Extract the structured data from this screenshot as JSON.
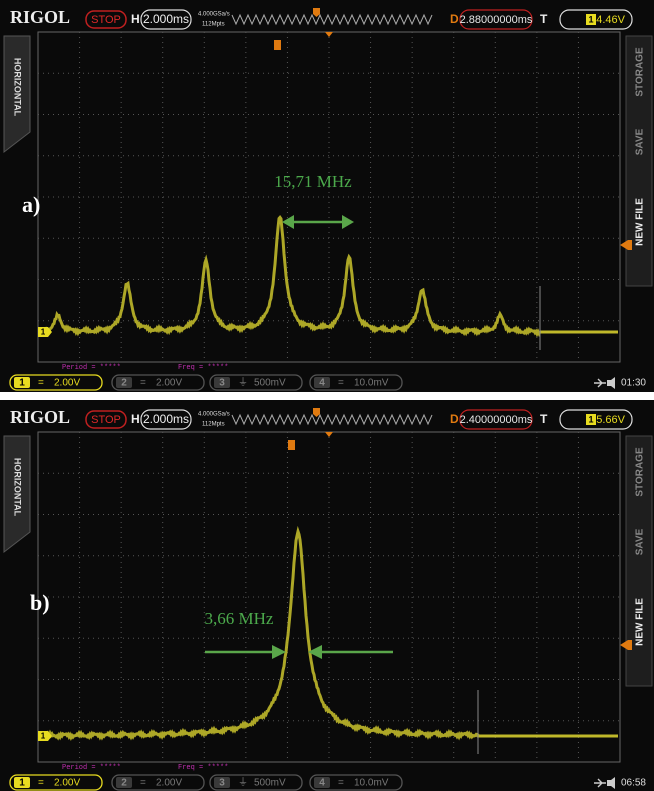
{
  "panels": [
    {
      "label": "a)",
      "annotation": "15,71 MHz",
      "top_bar": {
        "logo": "RIGOL",
        "status": "STOP",
        "timebase_label": "H",
        "timebase": "2.000ms",
        "sample_rate": "4.000GSa/s",
        "memory_depth": "112Mpts",
        "delay_label": "D",
        "delay": "2.88000000ms",
        "trigger_label": "T",
        "trigger_source": "1",
        "trigger_level": "4.46V"
      },
      "side_left": "HORIZONTAL",
      "side_right": [
        "STORAGE",
        "SAVE",
        "NEW FILE"
      ],
      "measurements": [
        "Period = *****",
        "Freq = *****"
      ],
      "channels": [
        {
          "number": "1",
          "coupling": "=",
          "scale": "2.00V"
        },
        {
          "number": "2",
          "coupling": "=",
          "scale": "2.00V"
        },
        {
          "number": "3",
          "coupling": "⏚",
          "scale": "500mV"
        },
        {
          "number": "4",
          "coupling": "=",
          "scale": "10.0mV"
        }
      ],
      "clock": "01:30"
    },
    {
      "label": "b)",
      "annotation": "3,66 MHz",
      "top_bar": {
        "logo": "RIGOL",
        "status": "STOP",
        "timebase_label": "H",
        "timebase": "2.000ms",
        "sample_rate": "4.000GSa/s",
        "memory_depth": "112Mpts",
        "delay_label": "D",
        "delay": "2.40000000ms",
        "trigger_label": "T",
        "trigger_source": "1",
        "trigger_level": "5.66V"
      },
      "side_left": "HORIZONTAL",
      "side_right": [
        "STORAGE",
        "SAVE",
        "NEW FILE"
      ],
      "measurements": [
        "Period = *****",
        "Freq = *****"
      ],
      "channels": [
        {
          "number": "1",
          "coupling": "=",
          "scale": "2.00V"
        },
        {
          "number": "2",
          "coupling": "=",
          "scale": "2.00V"
        },
        {
          "number": "3",
          "coupling": "⏚",
          "scale": "500mV"
        },
        {
          "number": "4",
          "coupling": "=",
          "scale": "10.0mV"
        }
      ],
      "clock": "06:58"
    }
  ]
}
